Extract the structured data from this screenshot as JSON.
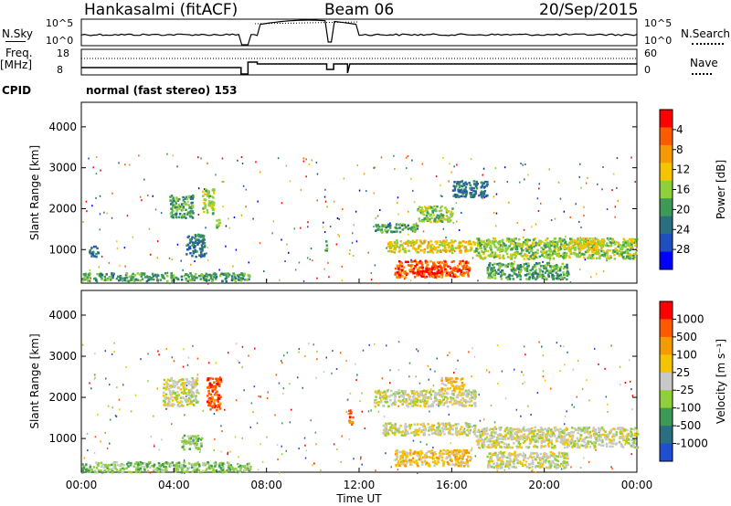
{
  "header": {
    "station": "Hankasalmi (fitACF)",
    "beam": "Beam 06",
    "date": "20/Sep/2015"
  },
  "sky_panel": {
    "left_label": "N.Sky",
    "left_ticks": [
      "10^5",
      "10^0"
    ],
    "right_ticks": [
      "10^5",
      "10^0"
    ],
    "right_label": "N.Search"
  },
  "freq_panel": {
    "left_label_1": "Freq.",
    "left_label_2": "[MHz]",
    "left_ticks": [
      "18",
      "8"
    ],
    "right_ticks": [
      "60",
      "0"
    ],
    "right_label": "Nave"
  },
  "cpid": {
    "label": "CPID",
    "value": "normal (fast stereo) 153"
  },
  "chart_data": [
    {
      "type": "heatmap",
      "panel": "power",
      "ylabel": "Slant Range [km]",
      "y_ticks": [
        "1000",
        "2000",
        "3000",
        "4000"
      ],
      "ylim": [
        180,
        4600
      ],
      "xlim_hours": [
        0,
        24
      ],
      "colorbar_label": "Power [dB]",
      "colorbar_ticks": [
        "4",
        "8",
        "12",
        "16",
        "20",
        "24",
        "28"
      ],
      "colorbar_colors": [
        "#0000ff",
        "#1f4fbf",
        "#2a6f80",
        "#3d9a56",
        "#8fcf3a",
        "#f5c400",
        "#f59a00",
        "#ff5a00",
        "#ff0000"
      ],
      "features": [
        {
          "t0": 0.0,
          "t1": 7.3,
          "r0": 250,
          "r1": 450,
          "level": 3
        },
        {
          "t0": 0.3,
          "t1": 0.7,
          "r0": 850,
          "r1": 1100,
          "level": 2
        },
        {
          "t0": 3.8,
          "t1": 4.8,
          "r0": 1800,
          "r1": 2350,
          "level": 3
        },
        {
          "t0": 4.5,
          "t1": 5.3,
          "r0": 850,
          "r1": 1400,
          "level": 2
        },
        {
          "t0": 5.2,
          "t1": 5.7,
          "r0": 1900,
          "r1": 2500,
          "level": 4
        },
        {
          "t0": 5.8,
          "t1": 6.0,
          "r0": 1500,
          "r1": 1750,
          "level": 4
        },
        {
          "t0": 10.5,
          "t1": 10.6,
          "r0": 1000,
          "r1": 1250,
          "level": 3
        },
        {
          "t0": 12.6,
          "t1": 14.5,
          "r0": 1450,
          "r1": 1650,
          "level": 3
        },
        {
          "t0": 14.5,
          "t1": 16.0,
          "r0": 1700,
          "r1": 2100,
          "level": 4
        },
        {
          "t0": 16.0,
          "t1": 17.5,
          "r0": 2300,
          "r1": 2700,
          "level": 2
        },
        {
          "t0": 13.2,
          "t1": 17.0,
          "r0": 950,
          "r1": 1250,
          "level": 5
        },
        {
          "t0": 13.5,
          "t1": 16.8,
          "r0": 350,
          "r1": 750,
          "level": 7
        },
        {
          "t0": 14.4,
          "t1": 15.6,
          "r0": 420,
          "r1": 620,
          "level": 8
        },
        {
          "t0": 17.0,
          "t1": 24.0,
          "r0": 800,
          "r1": 1300,
          "level": 4
        },
        {
          "t0": 21.0,
          "t1": 22.5,
          "r0": 1000,
          "r1": 1300,
          "level": 5
        },
        {
          "t0": 17.5,
          "t1": 21.0,
          "r0": 300,
          "r1": 700,
          "level": 3
        }
      ]
    },
    {
      "type": "heatmap",
      "panel": "velocity",
      "ylabel": "Slant Range [km]",
      "y_ticks": [
        "1000",
        "2000",
        "3000",
        "4000"
      ],
      "ylim": [
        180,
        4600
      ],
      "xlim_hours": [
        0,
        24
      ],
      "x_ticks": [
        "00:00",
        "04:00",
        "08:00",
        "12:00",
        "16:00",
        "20:00",
        "00:00"
      ],
      "xlabel": "Time UT",
      "colorbar_label": "Velocity [m s⁻¹]",
      "colorbar_ticks": [
        "1000",
        "500",
        "100",
        "25",
        "-25",
        "-100",
        "-500",
        "-1000"
      ],
      "colorbar_colors": [
        "#1f4fd0",
        "#2a6f80",
        "#3d9a56",
        "#8fcf3a",
        "#c8c8c8",
        "#f5c400",
        "#f59a00",
        "#ff5a00",
        "#ff0000"
      ],
      "features": [
        {
          "t0": 0.0,
          "t1": 7.3,
          "r0": 200,
          "r1": 450,
          "level": 3
        },
        {
          "t0": 3.5,
          "t1": 5.0,
          "r0": 1800,
          "r1": 2500,
          "level": 4
        },
        {
          "t0": 4.3,
          "t1": 5.2,
          "r0": 750,
          "r1": 1100,
          "level": 3
        },
        {
          "t0": 5.4,
          "t1": 6.0,
          "r0": 1700,
          "r1": 2500,
          "level": 7
        },
        {
          "t0": 11.5,
          "t1": 11.7,
          "r0": 1300,
          "r1": 1700,
          "level": 7
        },
        {
          "t0": 12.6,
          "t1": 17.0,
          "r0": 1800,
          "r1": 2200,
          "level": 4
        },
        {
          "t0": 15.5,
          "t1": 16.5,
          "r0": 2200,
          "r1": 2500,
          "level": 5
        },
        {
          "t0": 13.0,
          "t1": 17.0,
          "r0": 1100,
          "r1": 1400,
          "level": 4
        },
        {
          "t0": 13.5,
          "t1": 16.8,
          "r0": 350,
          "r1": 750,
          "level": 5
        },
        {
          "t0": 17.0,
          "t1": 24.0,
          "r0": 800,
          "r1": 1300,
          "level": 4
        },
        {
          "t0": 17.5,
          "t1": 21.0,
          "r0": 300,
          "r1": 700,
          "level": 4
        }
      ]
    }
  ]
}
